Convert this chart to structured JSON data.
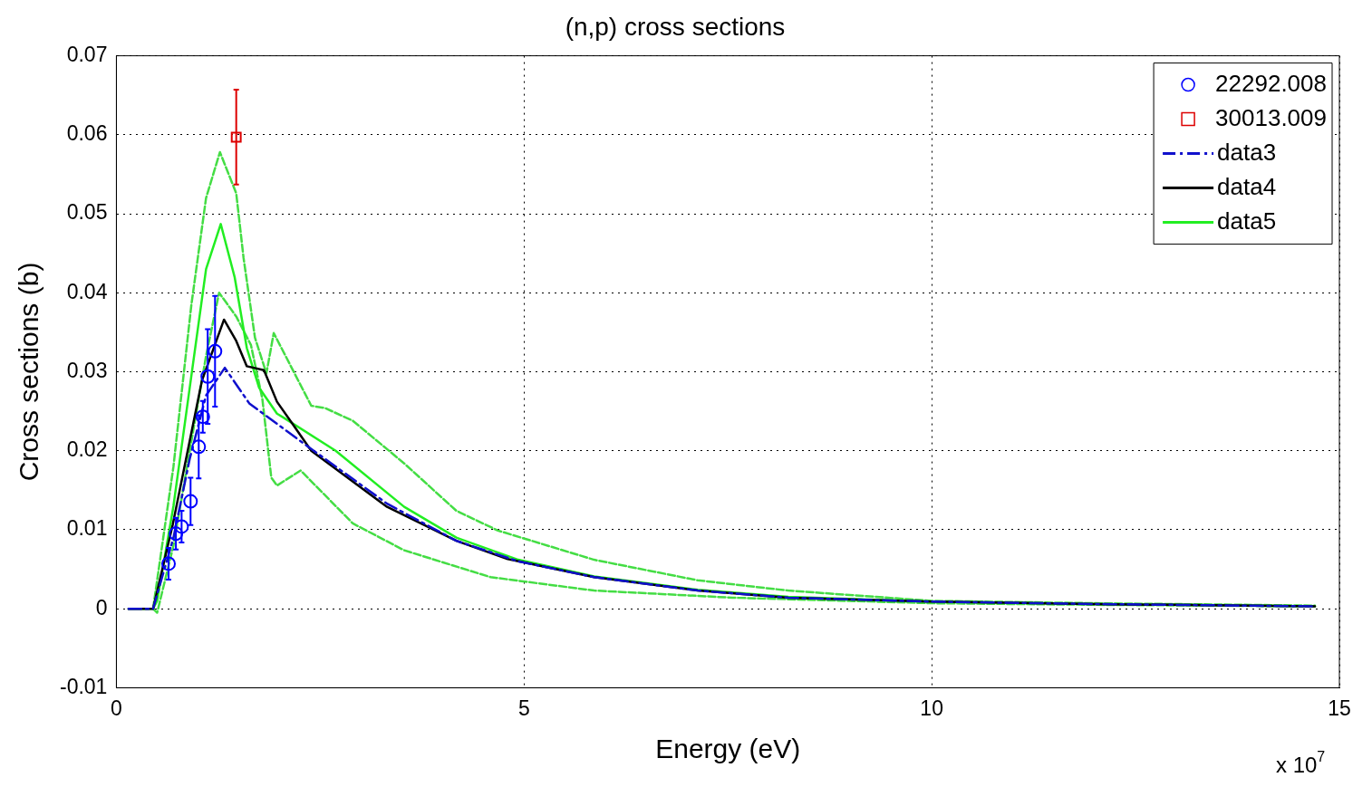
{
  "chart_data": {
    "type": "line",
    "title": "(n,p) cross sections",
    "xlabel": "Energy (eV)",
    "ylabel": "Cross sections (b)",
    "xlim": [
      0,
      15
    ],
    "xticks": [
      0,
      5,
      10,
      15
    ],
    "ylim": [
      -0.01,
      0.07
    ],
    "yticks": [
      -0.01,
      0,
      0.01,
      0.02,
      0.03,
      0.04,
      0.05,
      0.06,
      0.07
    ],
    "grid": true,
    "legend": "top right",
    "annotations": [
      "x 10$^{7}$"
    ],
    "series": [
      {
        "name": "22292.008",
        "type": "scatter",
        "marker": "circle",
        "color": "#0000ff",
        "x": [
          0.64,
          0.73,
          0.8,
          0.91,
          1.01,
          1.06,
          1.12,
          1.21
        ],
        "values": [
          0.0057,
          0.0095,
          0.0104,
          0.0136,
          0.0205,
          0.0243,
          0.0294,
          0.0326
        ],
        "errors": [
          0.002,
          0.002,
          0.002,
          0.003,
          0.004,
          0.002,
          0.006,
          0.007
        ]
      },
      {
        "name": "30013.009",
        "type": "scatter",
        "marker": "square",
        "color": "#dd0000",
        "x": [
          1.47
        ],
        "values": [
          0.0597
        ],
        "errors": [
          0.006
        ]
      },
      {
        "name": "data3",
        "marker": "none",
        "line_style": "dashdot",
        "color": "#1010cc",
        "x": [
          0.15,
          0.45,
          0.7,
          0.9,
          1.1,
          1.33,
          1.63,
          2.26,
          3.32,
          4.17,
          4.93,
          5.86,
          7.13,
          8.24,
          10,
          12,
          14.7
        ],
        "values": [
          0,
          0,
          0.009,
          0.019,
          0.027,
          0.0305,
          0.026,
          0.0212,
          0.0133,
          0.0086,
          0.006,
          0.004,
          0.0023,
          0.0014,
          0.0009,
          0.0006,
          0.0003
        ]
      },
      {
        "name": "data4",
        "marker": "none",
        "line_style": "solid",
        "color": "#000000",
        "x": [
          0.15,
          0.45,
          0.69,
          1.05,
          1.32,
          1.47,
          1.6,
          1.81,
          1.97,
          2.16,
          2.39,
          3.32,
          4.17,
          4.8,
          5.86,
          7.13,
          8.24,
          10,
          12,
          14.7
        ],
        "values": [
          0,
          0,
          0.0106,
          0.0289,
          0.0366,
          0.0339,
          0.0307,
          0.0302,
          0.0262,
          0.0234,
          0.02,
          0.0129,
          0.0086,
          0.0063,
          0.004,
          0.0023,
          0.0014,
          0.0009,
          0.0006,
          0.0003
        ]
      },
      {
        "name": "data5",
        "marker": "none",
        "line_style": "solid",
        "color": "#22ee22",
        "x": [
          0.15,
          0.45,
          0.5,
          0.7,
          0.9,
          1.1,
          1.28,
          1.45,
          1.6,
          1.75,
          1.97,
          2.05,
          2.69,
          3.53,
          4.17,
          4.93,
          5.86,
          7.13,
          8.24,
          10,
          12,
          14.7
        ],
        "values": [
          0,
          0,
          0.001,
          0.013,
          0.028,
          0.043,
          0.0487,
          0.042,
          0.033,
          0.028,
          0.0247,
          0.0242,
          0.02,
          0.0129,
          0.009,
          0.0062,
          0.0041,
          0.0024,
          0.0015,
          0.0009,
          0.0006,
          0.0003
        ]
      },
      {
        "marker": "none",
        "line_style": "dashed",
        "color": "#44dd44",
        "x": [
          0.45,
          0.7,
          0.92,
          1.1,
          1.27,
          1.47,
          1.56,
          1.7,
          1.84,
          1.93,
          2.39,
          2.56,
          2.9,
          3.53,
          4.17,
          4.68,
          5.86,
          7.13,
          8.24,
          10,
          12,
          14.7
        ],
        "values": [
          0,
          0.018,
          0.0385,
          0.052,
          0.0578,
          0.0526,
          0.0444,
          0.0343,
          0.0298,
          0.0349,
          0.0257,
          0.0254,
          0.0238,
          0.0184,
          0.0124,
          0.0099,
          0.0062,
          0.0036,
          0.0023,
          0.001,
          0.0007,
          0.0004
        ]
      },
      {
        "marker": "none",
        "line_style": "dashed",
        "color": "#44dd44",
        "x": [
          0.45,
          0.5,
          0.7,
          0.9,
          1.1,
          1.26,
          1.47,
          1.65,
          1.79,
          1.9,
          1.97,
          2.26,
          2.9,
          3.53,
          4.59,
          5.86,
          7.56,
          10,
          12,
          14.7
        ],
        "values": [
          0,
          -0.0005,
          0.008,
          0.02,
          0.032,
          0.04,
          0.037,
          0.0334,
          0.0266,
          0.0166,
          0.0156,
          0.0175,
          0.0108,
          0.0074,
          0.004,
          0.0023,
          0.0014,
          0.0007,
          0.0005,
          0.0003
        ]
      }
    ]
  }
}
